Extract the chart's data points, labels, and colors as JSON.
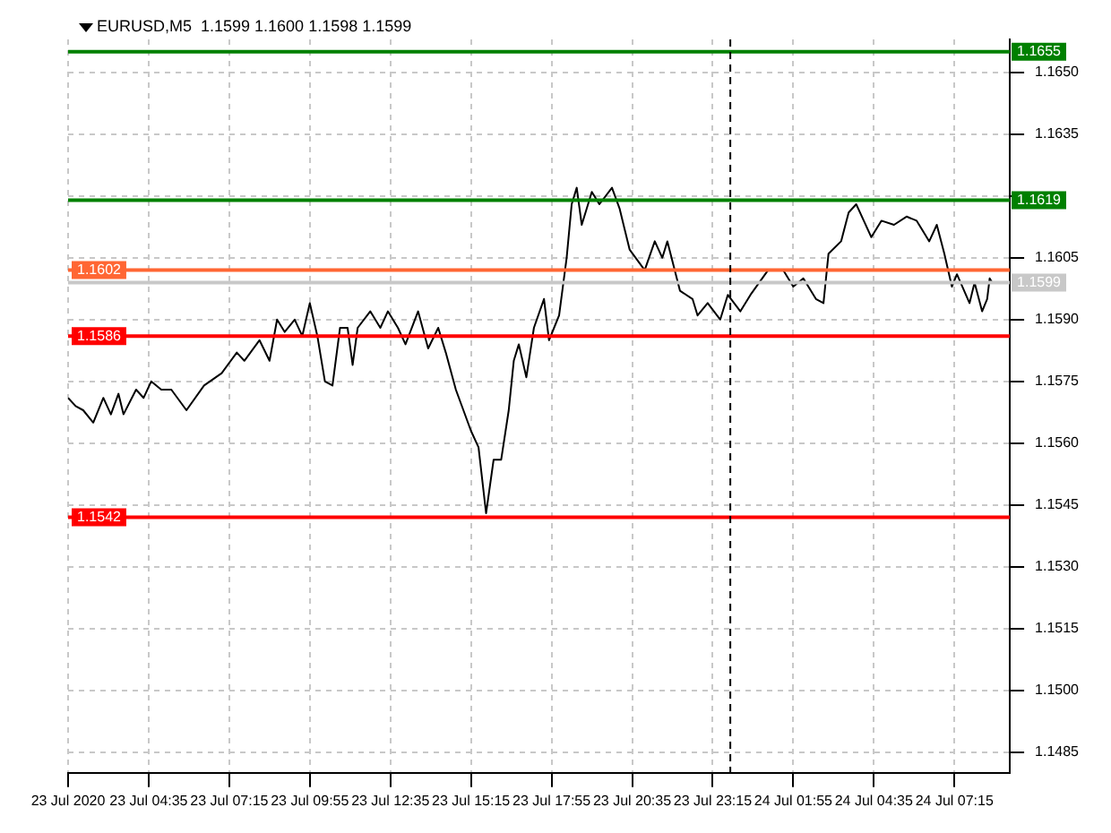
{
  "chart_data": {
    "type": "line",
    "title": "EURUSD,M5  1.1599 1.1600 1.1598 1.1599",
    "x": [
      "2020-07-23T01:55",
      "2020-07-23T02:10",
      "2020-07-23T02:25",
      "2020-07-23T02:45",
      "2020-07-23T03:05",
      "2020-07-23T03:20",
      "2020-07-23T03:35",
      "2020-07-23T03:45",
      "2020-07-23T04:10",
      "2020-07-23T04:25",
      "2020-07-23T04:40",
      "2020-07-23T05:00",
      "2020-07-23T05:20",
      "2020-07-23T05:50",
      "2020-07-23T06:25",
      "2020-07-23T07:00",
      "2020-07-23T07:30",
      "2020-07-23T07:45",
      "2020-07-23T08:15",
      "2020-07-23T08:35",
      "2020-07-23T08:50",
      "2020-07-23T09:05",
      "2020-07-23T09:25",
      "2020-07-23T09:40",
      "2020-07-23T09:55",
      "2020-07-23T10:10",
      "2020-07-23T10:25",
      "2020-07-23T10:40",
      "2020-07-23T10:55",
      "2020-07-23T11:10",
      "2020-07-23T11:20",
      "2020-07-23T11:30",
      "2020-07-23T11:55",
      "2020-07-23T12:15",
      "2020-07-23T12:30",
      "2020-07-23T12:50",
      "2020-07-23T13:05",
      "2020-07-23T13:30",
      "2020-07-23T13:50",
      "2020-07-23T14:10",
      "2020-07-23T14:25",
      "2020-07-23T14:45",
      "2020-07-23T15:00",
      "2020-07-23T15:15",
      "2020-07-23T15:30",
      "2020-07-23T15:45",
      "2020-07-23T16:00",
      "2020-07-23T16:15",
      "2020-07-23T16:30",
      "2020-07-23T16:40",
      "2020-07-23T16:50",
      "2020-07-23T17:05",
      "2020-07-23T17:20",
      "2020-07-23T17:40",
      "2020-07-23T17:50",
      "2020-07-23T18:00",
      "2020-07-23T18:10",
      "2020-07-23T18:25",
      "2020-07-23T18:35",
      "2020-07-23T18:45",
      "2020-07-23T18:55",
      "2020-07-23T19:15",
      "2020-07-23T19:30",
      "2020-07-23T19:55",
      "2020-07-23T20:10",
      "2020-07-23T20:30",
      "2020-07-23T21:00",
      "2020-07-23T21:20",
      "2020-07-23T21:35",
      "2020-07-23T21:45",
      "2020-07-23T22:10",
      "2020-07-23T22:35",
      "2020-07-23T22:45",
      "2020-07-23T23:05",
      "2020-07-23T23:30",
      "2020-07-23T23:45",
      "2020-07-24T00:10",
      "2020-07-24T00:30",
      "2020-07-24T01:05",
      "2020-07-24T01:35",
      "2020-07-24T01:55",
      "2020-07-24T02:15",
      "2020-07-24T02:40",
      "2020-07-24T02:55",
      "2020-07-24T03:05",
      "2020-07-24T03:30",
      "2020-07-24T03:45",
      "2020-07-24T04:00",
      "2020-07-24T04:15",
      "2020-07-24T04:30",
      "2020-07-24T04:50",
      "2020-07-24T05:15",
      "2020-07-24T05:40",
      "2020-07-24T06:00",
      "2020-07-24T06:25",
      "2020-07-24T06:40",
      "2020-07-24T06:55",
      "2020-07-24T07:10",
      "2020-07-24T07:20",
      "2020-07-24T07:45",
      "2020-07-24T07:55",
      "2020-07-24T08:10",
      "2020-07-24T08:20",
      "2020-07-24T08:25",
      "2020-07-24T08:30"
    ],
    "series": [
      {
        "color": "#000000",
        "values": [
          1.1571,
          1.1569,
          1.1568,
          1.1565,
          1.1571,
          1.1567,
          1.1572,
          1.1567,
          1.1573,
          1.1571,
          1.1575,
          1.1573,
          1.1573,
          1.1568,
          1.1574,
          1.1577,
          1.1582,
          1.158,
          1.1585,
          1.158,
          1.159,
          1.1587,
          1.159,
          1.1586,
          1.1594,
          1.1586,
          1.1575,
          1.1574,
          1.1588,
          1.1588,
          1.1579,
          1.1588,
          1.1592,
          1.1588,
          1.1592,
          1.1588,
          1.1584,
          1.1592,
          1.1583,
          1.1588,
          1.1582,
          1.1573,
          1.1568,
          1.1563,
          1.1559,
          1.1543,
          1.1556,
          1.1556,
          1.1568,
          1.158,
          1.1584,
          1.1576,
          1.1588,
          1.1595,
          1.1585,
          1.1588,
          1.1591,
          1.1605,
          1.1618,
          1.1622,
          1.1613,
          1.1621,
          1.1618,
          1.1622,
          1.1617,
          1.1607,
          1.1602,
          1.1609,
          1.1605,
          1.1609,
          1.1597,
          1.1595,
          1.1591,
          1.1594,
          1.159,
          1.1596,
          1.1592,
          1.1596,
          1.1602,
          1.1602,
          1.1598,
          1.16,
          1.1595,
          1.1594,
          1.1606,
          1.1609,
          1.1616,
          1.1618,
          1.1614,
          1.161,
          1.1614,
          1.1613,
          1.1615,
          1.1614,
          1.1609,
          1.1613,
          1.1606,
          1.1598,
          1.1601,
          1.1594,
          1.1599,
          1.1592,
          1.1595,
          1.16,
          1.1599
        ]
      }
    ],
    "xlim": [
      "2020-07-23T01:55",
      "2020-07-24T09:05"
    ],
    "xticks": [
      {
        "value": "2020-07-23T01:55",
        "label": "23 Jul 2020"
      },
      {
        "value": "2020-07-23T04:35",
        "label": "23 Jul 04:35"
      },
      {
        "value": "2020-07-23T07:15",
        "label": "23 Jul 07:15"
      },
      {
        "value": "2020-07-23T09:55",
        "label": "23 Jul 09:55"
      },
      {
        "value": "2020-07-23T12:35",
        "label": "23 Jul 12:35"
      },
      {
        "value": "2020-07-23T15:15",
        "label": "23 Jul 15:15"
      },
      {
        "value": "2020-07-23T17:55",
        "label": "23 Jul 17:55"
      },
      {
        "value": "2020-07-23T20:35",
        "label": "23 Jul 20:35"
      },
      {
        "value": "2020-07-23T23:15",
        "label": "23 Jul 23:15"
      },
      {
        "value": "2020-07-24T01:55",
        "label": "24 Jul 01:55"
      },
      {
        "value": "2020-07-24T04:35",
        "label": "24 Jul 04:35"
      },
      {
        "value": "2020-07-24T07:15",
        "label": "24 Jul 07:15"
      }
    ],
    "ylim": [
      1.148,
      1.1658
    ],
    "yticks": [
      {
        "value": 1.1485,
        "label": "1.1485"
      },
      {
        "value": 1.15,
        "label": "1.1500"
      },
      {
        "value": 1.1515,
        "label": "1.1515"
      },
      {
        "value": 1.153,
        "label": "1.1530"
      },
      {
        "value": 1.1545,
        "label": "1.1545"
      },
      {
        "value": 1.156,
        "label": "1.1560"
      },
      {
        "value": 1.1575,
        "label": "1.1575"
      },
      {
        "value": 1.159,
        "label": "1.1590"
      },
      {
        "value": 1.1605,
        "label": "1.1605"
      },
      {
        "value": 1.162,
        "label": null
      },
      {
        "value": 1.1635,
        "label": "1.1635"
      },
      {
        "value": 1.165,
        "label": "1.1650"
      }
    ],
    "ref_lines": [
      {
        "axis": "y",
        "value": 1.1655,
        "label": "1.1655",
        "color": "#008000"
      },
      {
        "axis": "y",
        "value": 1.1619,
        "label": "1.1619",
        "color": "#008000"
      },
      {
        "axis": "y",
        "value": 1.1602,
        "label": "1.1602",
        "color": "#ff6633"
      },
      {
        "axis": "y",
        "value": 1.1599,
        "label": "1.1599",
        "color": "#c8c8c8"
      },
      {
        "axis": "y",
        "value": 1.1586,
        "label": "1.1586",
        "color": "#ff0000"
      },
      {
        "axis": "y",
        "value": 1.1542,
        "label": "1.1542",
        "color": "#ff0000"
      },
      {
        "axis": "x",
        "value": "2020-07-23T23:50",
        "color": "#000000",
        "line_style": "dashed"
      }
    ],
    "grid": true,
    "marker": "none",
    "line_style": "solid"
  }
}
